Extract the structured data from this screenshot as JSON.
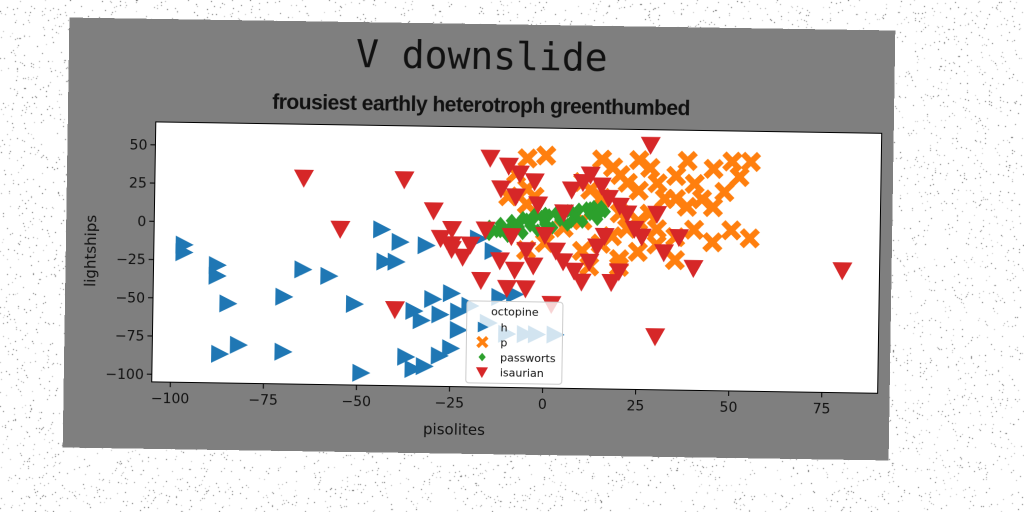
{
  "suptitle": "V downslide",
  "chart_data": {
    "type": "scatter",
    "title": "frousiest earthly heterotroph greenthumbed",
    "xlabel": "pisolites",
    "ylabel": "lightships",
    "xlim": [
      -105,
      90
    ],
    "ylim": [
      -105,
      65
    ],
    "xticks": [
      -100,
      -75,
      -50,
      -25,
      0,
      25,
      50,
      75
    ],
    "yticks": [
      50,
      25,
      0,
      -25,
      -50,
      -75,
      -100
    ],
    "grid": false,
    "legend": {
      "title": "octopine",
      "placement": "lower center"
    },
    "series": [
      {
        "name": "h",
        "marker": "triangle-right",
        "color": "#1f77b4",
        "points": [
          [
            -97,
            -15
          ],
          [
            -97,
            -20
          ],
          [
            -88,
            -28
          ],
          [
            -88,
            -35
          ],
          [
            -85,
            -53
          ],
          [
            -87,
            -86
          ],
          [
            -82,
            -80
          ],
          [
            -70,
            -48
          ],
          [
            -65,
            -30
          ],
          [
            -58,
            -34
          ],
          [
            -51,
            -52
          ],
          [
            -49,
            -97
          ],
          [
            -43,
            -24
          ],
          [
            -40,
            -24
          ],
          [
            -44,
            -3
          ],
          [
            -39,
            -11
          ],
          [
            -32,
            -13
          ],
          [
            -35,
            -56
          ],
          [
            -30,
            -48
          ],
          [
            -33,
            -62
          ],
          [
            -37,
            -86
          ],
          [
            -35,
            -94
          ],
          [
            -28,
            -85
          ],
          [
            -25,
            -80
          ],
          [
            -25,
            -44
          ],
          [
            -20,
            -52
          ],
          [
            -23,
            -56
          ],
          [
            -28,
            -58
          ],
          [
            -23,
            -68
          ],
          [
            -15,
            -63
          ],
          [
            -10,
            -70
          ],
          [
            -12,
            -46
          ],
          [
            -5,
            -70
          ],
          [
            -14,
            -16
          ],
          [
            -18,
            -8
          ],
          [
            -8,
            -44
          ],
          [
            -2,
            -70
          ],
          [
            3,
            -70
          ],
          [
            -70,
            -84
          ],
          [
            -32,
            -92
          ]
        ]
      },
      {
        "name": "p",
        "marker": "x-filled",
        "color": "#ff7f0e",
        "points": [
          [
            -5,
            45
          ],
          [
            0,
            47
          ],
          [
            -8,
            35
          ],
          [
            -5,
            25
          ],
          [
            -3,
            20
          ],
          [
            -10,
            20
          ],
          [
            -5,
            15
          ],
          [
            10,
            30
          ],
          [
            12,
            25
          ],
          [
            15,
            45
          ],
          [
            18,
            40
          ],
          [
            20,
            35
          ],
          [
            22,
            30
          ],
          [
            25,
            45
          ],
          [
            28,
            40
          ],
          [
            30,
            30
          ],
          [
            35,
            35
          ],
          [
            38,
            45
          ],
          [
            40,
            30
          ],
          [
            45,
            40
          ],
          [
            50,
            45
          ],
          [
            55,
            45
          ],
          [
            52,
            35
          ],
          [
            48,
            25
          ],
          [
            42,
            20
          ],
          [
            38,
            15
          ],
          [
            32,
            20
          ],
          [
            28,
            10
          ],
          [
            25,
            5
          ],
          [
            22,
            0
          ],
          [
            18,
            -5
          ],
          [
            15,
            -10
          ],
          [
            10,
            -15
          ],
          [
            12,
            -25
          ],
          [
            20,
            -20
          ],
          [
            25,
            -15
          ],
          [
            30,
            -10
          ],
          [
            35,
            -5
          ],
          [
            40,
            0
          ],
          [
            45,
            -8
          ],
          [
            50,
            0
          ],
          [
            55,
            -5
          ],
          [
            45,
            15
          ],
          [
            35,
            20
          ],
          [
            25,
            25
          ],
          [
            15,
            20
          ],
          [
            20,
            10
          ],
          [
            30,
            0
          ],
          [
            10,
            5
          ],
          [
            5,
            0
          ],
          [
            0,
            -10
          ],
          [
            -5,
            -15
          ],
          [
            20,
            -25
          ],
          [
            35,
            -20
          ]
        ]
      },
      {
        "name": "passworts",
        "marker": "diamond",
        "color": "#2ca02c",
        "points": [
          [
            -15,
            -5
          ],
          [
            -13,
            -3
          ],
          [
            -11,
            -1
          ],
          [
            -9,
            1
          ],
          [
            -7,
            3
          ],
          [
            -5,
            5
          ],
          [
            -3,
            6
          ],
          [
            -1,
            7
          ],
          [
            1,
            8
          ],
          [
            3,
            9
          ],
          [
            5,
            10
          ],
          [
            7,
            11
          ],
          [
            9,
            12
          ],
          [
            11,
            13
          ],
          [
            13,
            14
          ],
          [
            -15,
            0
          ],
          [
            -12,
            2
          ],
          [
            -9,
            4
          ],
          [
            -6,
            6
          ],
          [
            -3,
            8
          ],
          [
            0,
            9
          ],
          [
            3,
            10
          ],
          [
            6,
            11
          ],
          [
            9,
            12
          ],
          [
            12,
            13
          ],
          [
            15,
            14
          ],
          [
            -12,
            -3
          ],
          [
            -8,
            -1
          ],
          [
            -4,
            1
          ],
          [
            0,
            3
          ],
          [
            4,
            5
          ],
          [
            8,
            7
          ],
          [
            12,
            9
          ],
          [
            16,
            11
          ],
          [
            -10,
            -6
          ],
          [
            -6,
            -4
          ],
          [
            -2,
            -2
          ],
          [
            2,
            0
          ],
          [
            6,
            2
          ],
          [
            10,
            4
          ],
          [
            14,
            6
          ],
          [
            -14,
            -2
          ],
          [
            -7,
            0
          ],
          [
            0,
            2
          ],
          [
            7,
            4
          ],
          [
            14,
            8
          ]
        ]
      },
      {
        "name": "isaurian",
        "marker": "triangle-down",
        "color": "#d62728",
        "points": [
          [
            -65,
            30
          ],
          [
            -38,
            30
          ],
          [
            -55,
            -3
          ],
          [
            -30,
            10
          ],
          [
            -28,
            -8
          ],
          [
            -25,
            -12
          ],
          [
            -22,
            -20
          ],
          [
            -20,
            -12
          ],
          [
            -25,
            -2
          ],
          [
            -17,
            -35
          ],
          [
            -10,
            -40
          ],
          [
            -5,
            -40
          ],
          [
            -12,
            -22
          ],
          [
            -8,
            -28
          ],
          [
            -3,
            -25
          ],
          [
            -5,
            -15
          ],
          [
            0,
            -5
          ],
          [
            3,
            -15
          ],
          [
            5,
            -22
          ],
          [
            8,
            -28
          ],
          [
            10,
            -35
          ],
          [
            12,
            -22
          ],
          [
            14,
            -12
          ],
          [
            16,
            -5
          ],
          [
            18,
            -35
          ],
          [
            20,
            -28
          ],
          [
            -15,
            45
          ],
          [
            -10,
            40
          ],
          [
            -7,
            35
          ],
          [
            -3,
            30
          ],
          [
            -12,
            25
          ],
          [
            -8,
            20
          ],
          [
            -2,
            15
          ],
          [
            5,
            10
          ],
          [
            7,
            25
          ],
          [
            10,
            30
          ],
          [
            12,
            35
          ],
          [
            15,
            28
          ],
          [
            17,
            20
          ],
          [
            20,
            15
          ],
          [
            22,
            10
          ],
          [
            24,
            0
          ],
          [
            26,
            -5
          ],
          [
            28,
            55
          ],
          [
            30,
            10
          ],
          [
            32,
            -15
          ],
          [
            36,
            -5
          ],
          [
            40,
            -25
          ],
          [
            -40,
            -55
          ],
          [
            2,
            -50
          ],
          [
            30,
            -70
          ],
          [
            80,
            -25
          ],
          [
            -25,
            -15
          ],
          [
            -16,
            -2
          ],
          [
            -9,
            -6
          ]
        ]
      }
    ]
  }
}
